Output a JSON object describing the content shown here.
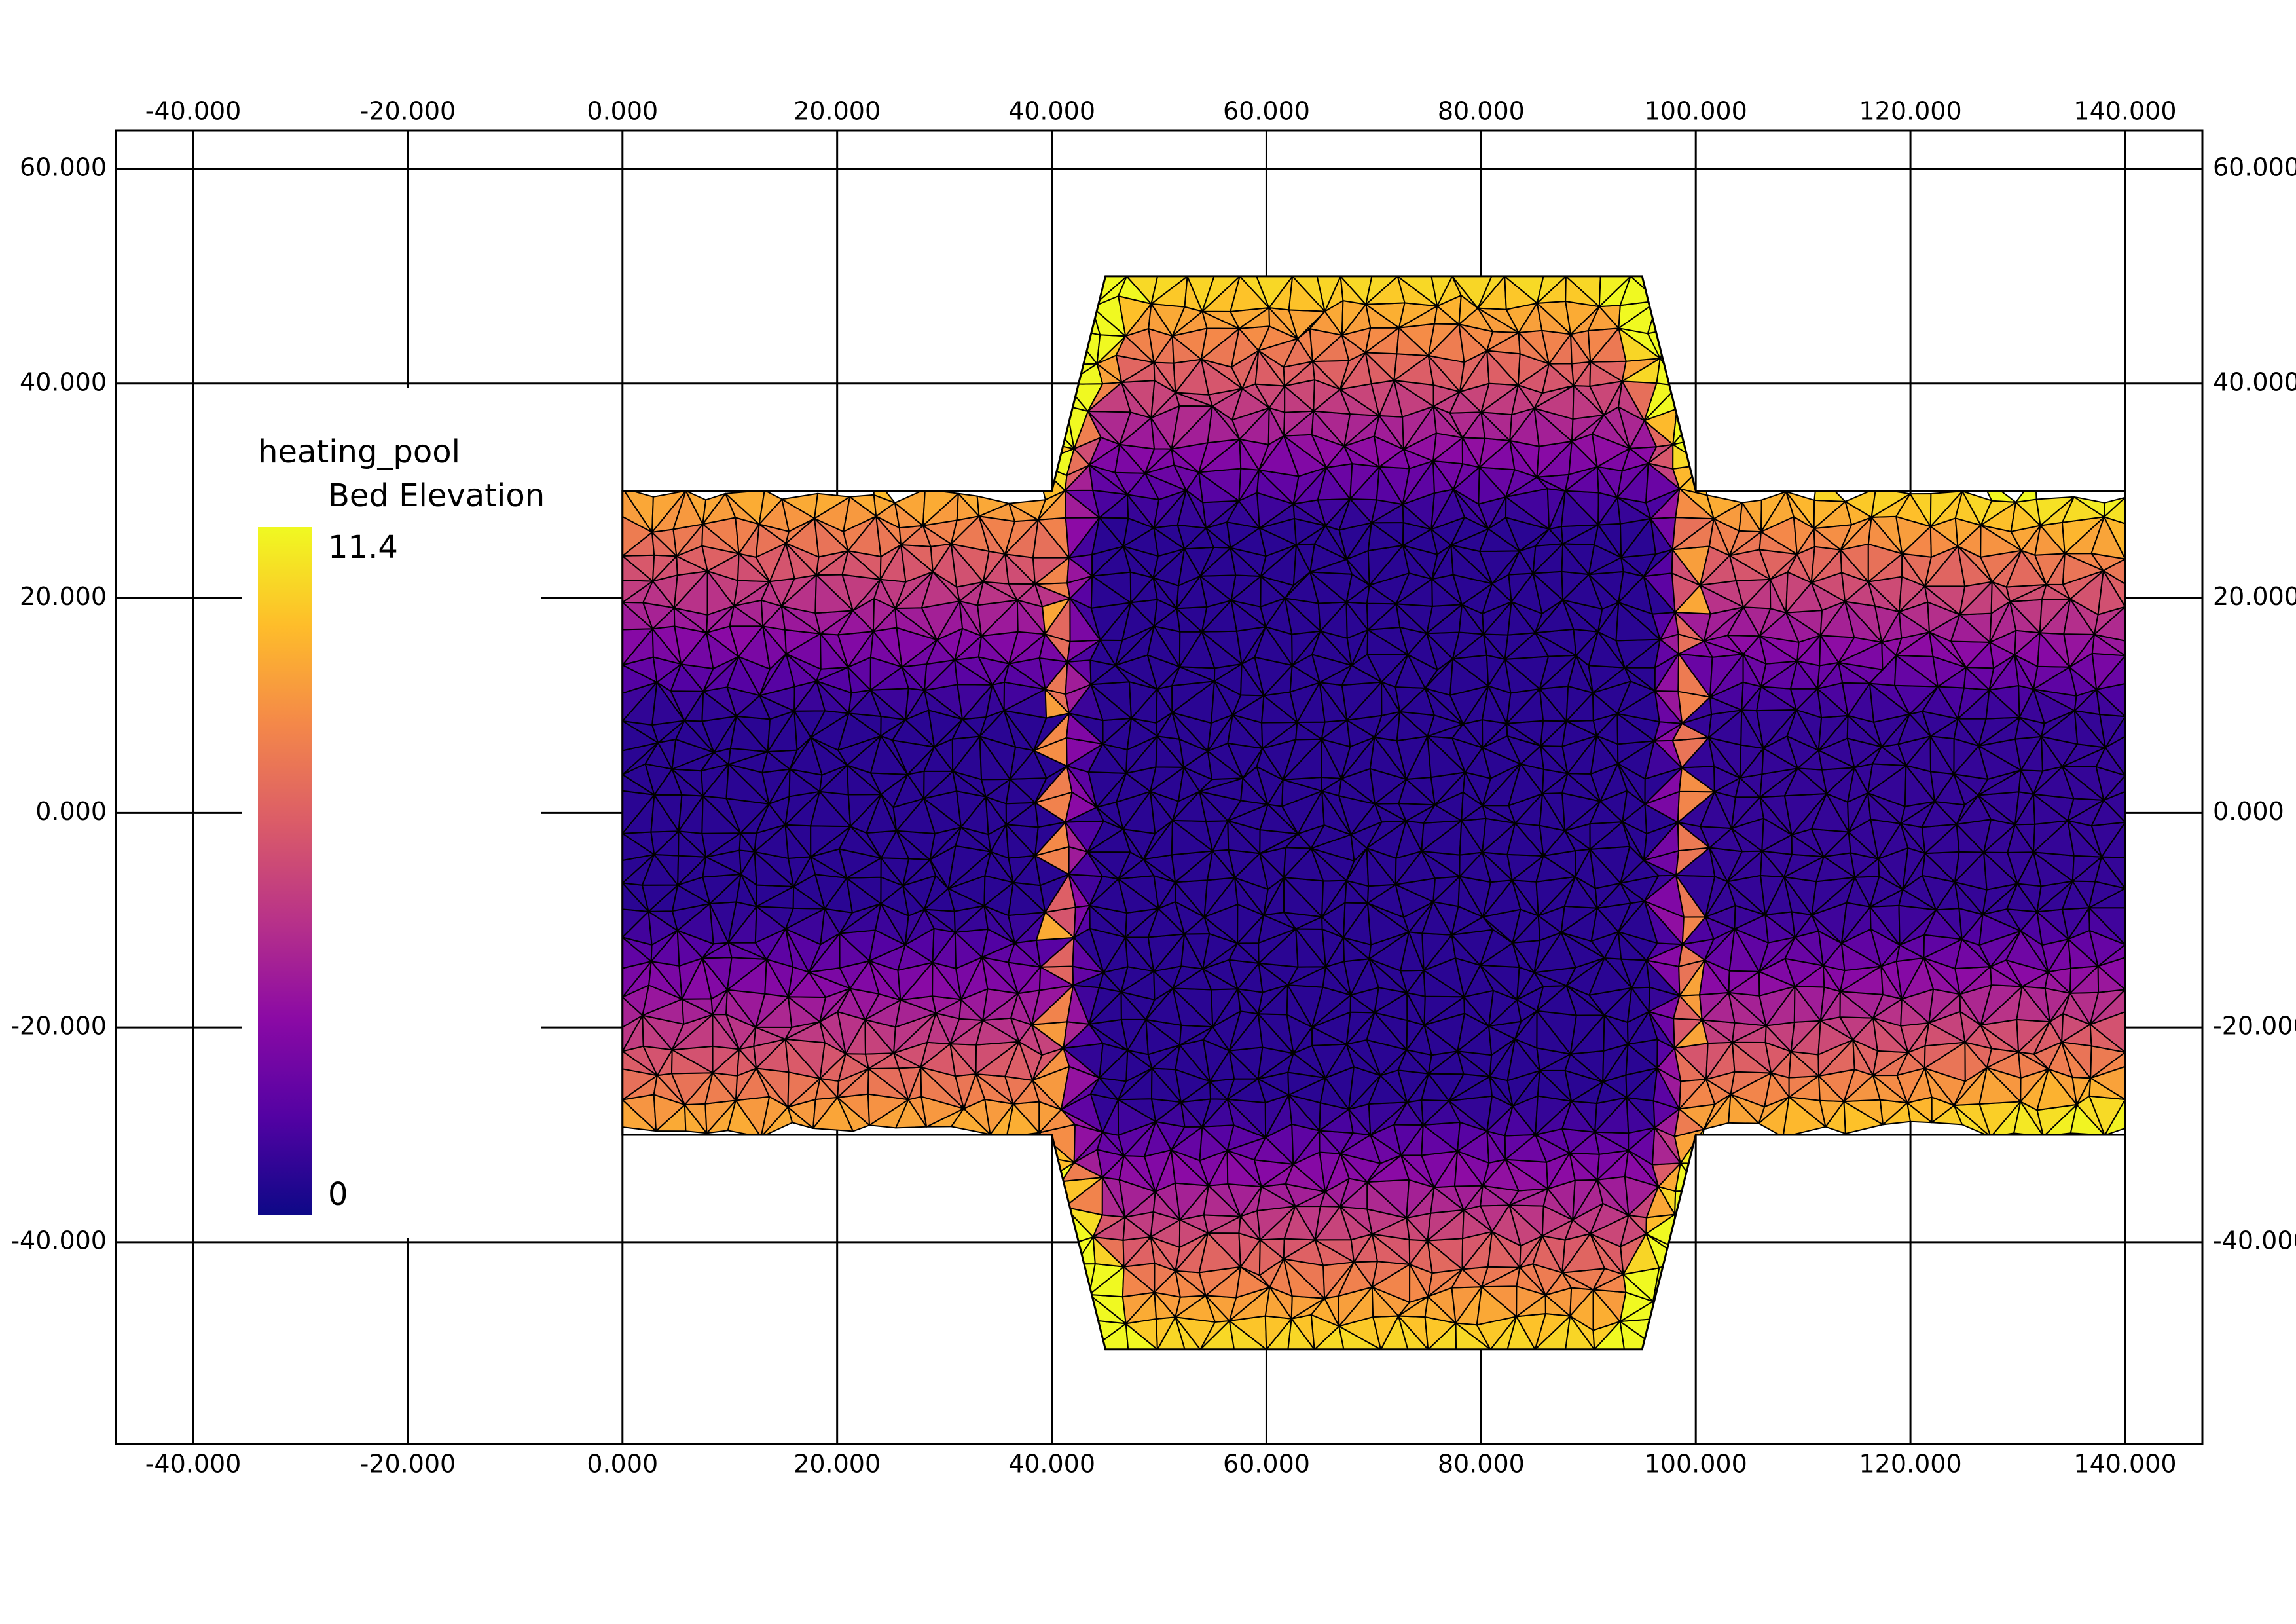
{
  "chart_data": {
    "type": "mesh",
    "title": "heating_pool",
    "xlim": [
      -47.2,
      147.2
    ],
    "ylim": [
      -58.8,
      63.6
    ],
    "xticks": [
      {
        "value": -40,
        "label": "-40.000"
      },
      {
        "value": -20,
        "label": "-20.000"
      },
      {
        "value": 0,
        "label": "0.000"
      },
      {
        "value": 20,
        "label": "20.000"
      },
      {
        "value": 40,
        "label": "40.000"
      },
      {
        "value": 60,
        "label": "60.000"
      },
      {
        "value": 80,
        "label": "80.000"
      },
      {
        "value": 100,
        "label": "100.000"
      },
      {
        "value": 120,
        "label": "120.000"
      },
      {
        "value": 140,
        "label": "140.000"
      }
    ],
    "yticks": [
      {
        "value": -40,
        "label": "-40.000"
      },
      {
        "value": -20,
        "label": "-20.000"
      },
      {
        "value": 0,
        "label": "0.000"
      },
      {
        "value": 20,
        "label": "20.000"
      },
      {
        "value": 40,
        "label": "40.000"
      },
      {
        "value": 60,
        "label": "60.000"
      }
    ],
    "grid": true,
    "outline": {
      "x": [
        0,
        40,
        45,
        95,
        100,
        140,
        140,
        100,
        95,
        45,
        40,
        0
      ],
      "y": [
        30,
        30,
        50,
        50,
        30,
        30,
        -30,
        -30,
        -50,
        -50,
        -30,
        -30
      ]
    },
    "colorbar": {
      "label": "Bed Elevation",
      "min": 0,
      "max": 11.4,
      "colors": [
        "#0d0887",
        "#5302a3",
        "#8b0aa5",
        "#b83289",
        "#db5c68",
        "#f48849",
        "#febd2a",
        "#f0f921"
      ]
    }
  }
}
